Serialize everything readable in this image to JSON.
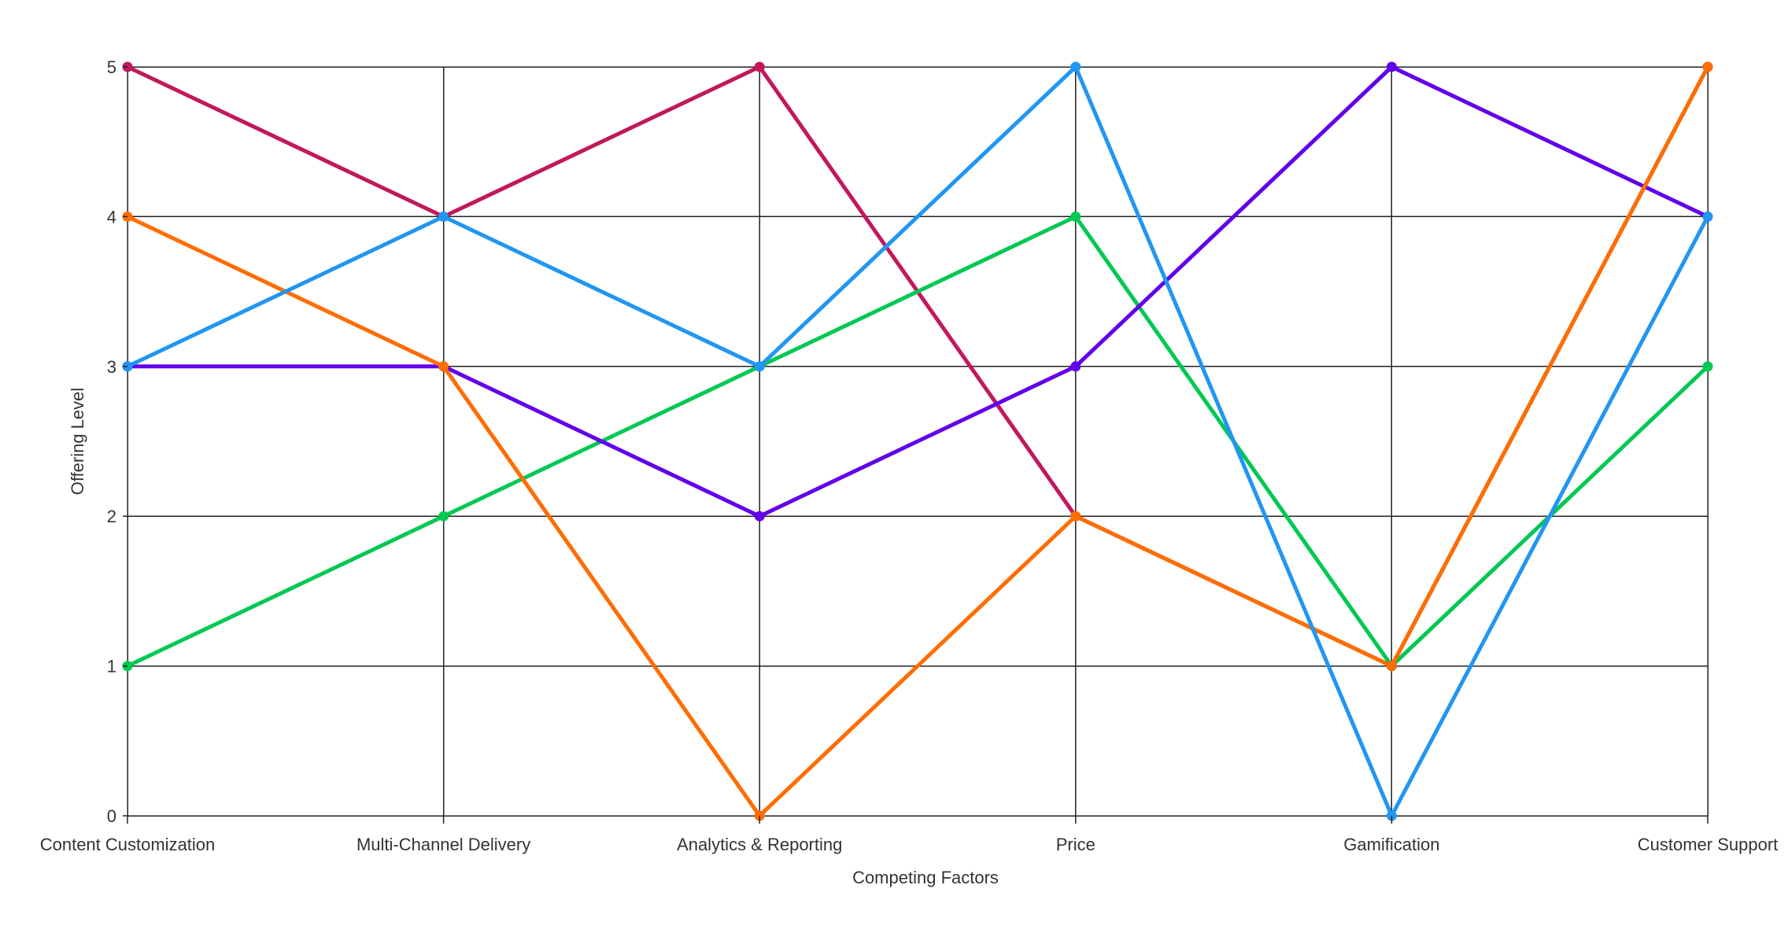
{
  "chart_data": {
    "type": "line",
    "title": "",
    "xlabel": "Competing Factors",
    "ylabel": "Offering Level",
    "ylim": [
      0,
      5
    ],
    "yticks": [
      "0",
      "1",
      "2",
      "3",
      "4",
      "5"
    ],
    "grid": true,
    "categories": [
      "Content Customization",
      "Multi-Channel Delivery",
      "Analytics & Reporting",
      "Price",
      "Gamification",
      "Customer Support"
    ],
    "series": [
      {
        "color": "#C2185B",
        "values": [
          5,
          4,
          5,
          2,
          1,
          5
        ]
      },
      {
        "color": "#00C853",
        "values": [
          1,
          2,
          3,
          4,
          1,
          3
        ]
      },
      {
        "color": "#6200EA",
        "values": [
          3,
          3,
          2,
          3,
          5,
          4
        ]
      },
      {
        "color": "#FF6D00",
        "values": [
          4,
          3,
          0,
          2,
          1,
          5
        ]
      },
      {
        "color": "#2196F3",
        "values": [
          3,
          4,
          3,
          5,
          0,
          4
        ]
      }
    ]
  }
}
